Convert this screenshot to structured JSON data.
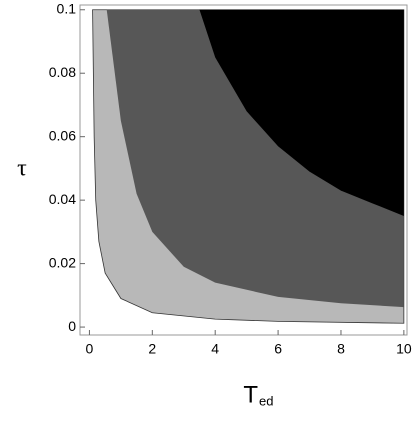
{
  "chart_data": {
    "type": "region",
    "xlabel": "T",
    "xlabel_subscript": "ed",
    "ylabel": "τ",
    "xlim": [
      -0.3,
      10.1
    ],
    "ylim": [
      -0.0025,
      0.1015
    ],
    "xticks": [
      0,
      2,
      4,
      6,
      8,
      10
    ],
    "yticks": [
      0,
      0.02,
      0.04,
      0.06,
      0.08,
      0.1
    ],
    "series": [
      {
        "color": "#b8b8b8",
        "x": [
          0.1,
          0.15,
          0.2,
          0.3,
          0.5,
          1,
          2,
          4,
          6,
          10
        ],
        "values": [
          0.1,
          0.06,
          0.04,
          0.027,
          0.017,
          0.009,
          0.0045,
          0.0025,
          0.0018,
          0.0012
        ]
      },
      {
        "color": "#575757",
        "x": [
          0.55,
          1,
          1.5,
          2,
          3,
          4,
          6,
          8,
          10
        ],
        "values": [
          0.1,
          0.065,
          0.042,
          0.03,
          0.019,
          0.014,
          0.0095,
          0.0075,
          0.0063
        ]
      },
      {
        "color": "#000000",
        "x": [
          3.5,
          4,
          5,
          6,
          7,
          8,
          9,
          10
        ],
        "values": [
          0.1,
          0.085,
          0.068,
          0.057,
          0.049,
          0.043,
          0.039,
          0.035
        ]
      }
    ]
  }
}
